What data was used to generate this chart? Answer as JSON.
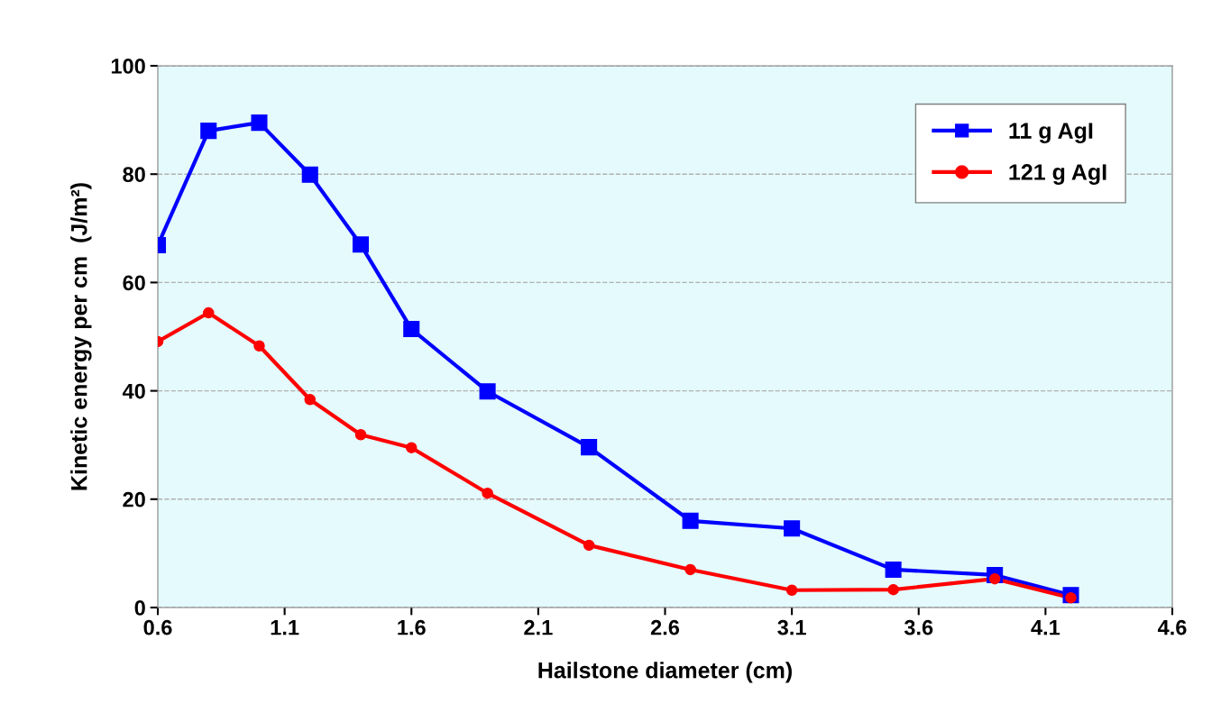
{
  "chart_data": {
    "type": "line",
    "xlabel": "Hailstone diameter (cm)",
    "ylabel": "Kinetic energy per cm  (J/m²)",
    "x": [
      0.6,
      0.8,
      1.0,
      1.2,
      1.4,
      1.6,
      1.9,
      2.3,
      2.7,
      3.1,
      3.5,
      3.9,
      4.2
    ],
    "series": [
      {
        "name": "11 g AgI",
        "color": "#0000ff",
        "marker": "square",
        "values": [
          66.9,
          88,
          89.5,
          79.9,
          67,
          51.4,
          39.9,
          29.6,
          16,
          14.6,
          7,
          6,
          2.3
        ]
      },
      {
        "name": "121 g AgI",
        "color": "#ff0000",
        "marker": "circle",
        "values": [
          49.1,
          54.4,
          48.3,
          38.4,
          31.9,
          29.5,
          21.1,
          11.5,
          7,
          3.2,
          3.3,
          5.3,
          1.8
        ]
      }
    ],
    "xlim": [
      0.6,
      4.6
    ],
    "xticks": [
      0.6,
      1.1,
      1.6,
      2.1,
      2.6,
      3.1,
      3.6,
      4.1,
      4.6
    ],
    "ylim": [
      0,
      100
    ],
    "yticks": [
      0,
      20,
      40,
      60,
      80,
      100
    ],
    "grid": "y",
    "legend": "top right",
    "line_style": "solid"
  }
}
